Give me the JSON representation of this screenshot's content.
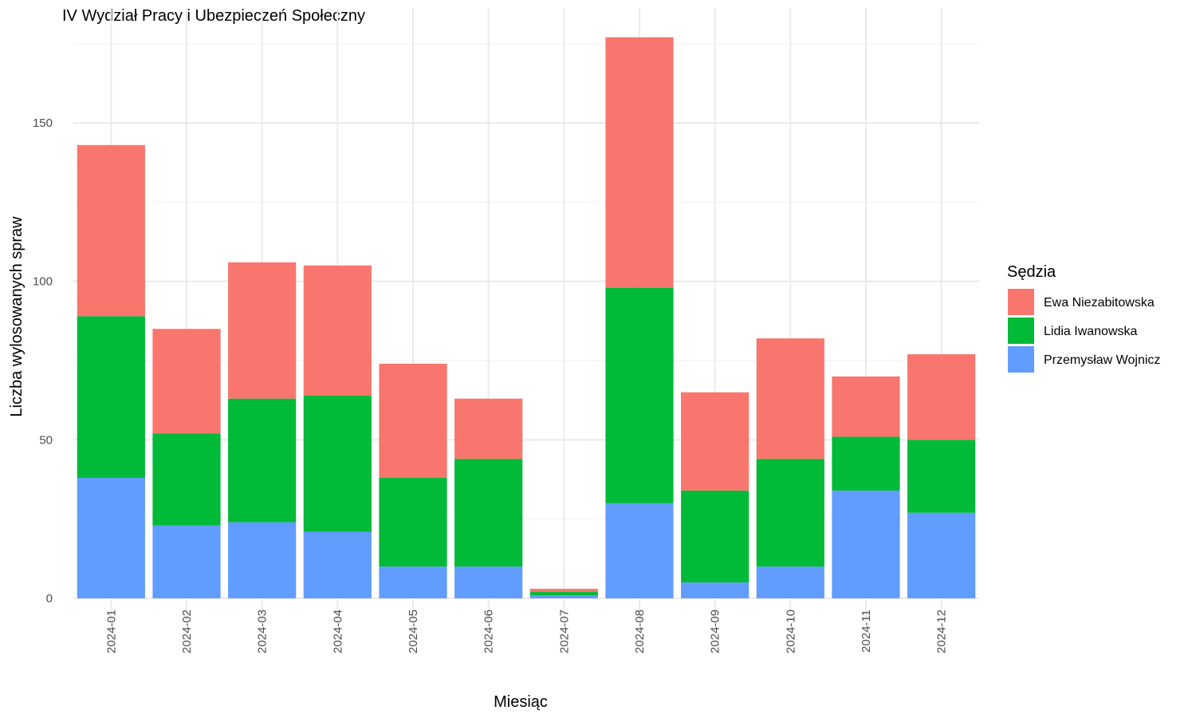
{
  "chart_data": {
    "type": "bar",
    "stacked": true,
    "title": "IV Wydział Pracy i Ubezpieczeń Społeczny",
    "xlabel": "Miesiąc",
    "ylabel": "Liczba wylosowanych spraw",
    "categories": [
      "2024-01",
      "2024-02",
      "2024-03",
      "2024-04",
      "2024-05",
      "2024-06",
      "2024-07",
      "2024-08",
      "2024-09",
      "2024-10",
      "2024-11",
      "2024-12"
    ],
    "y_ticks": [
      0,
      50,
      100,
      150
    ],
    "ylim": [
      0,
      182
    ],
    "grid": true,
    "legend": {
      "title": "Sędzia",
      "position": "right"
    },
    "series": [
      {
        "name": "Przemysław Wojnicz",
        "color": "#619CFF",
        "values": [
          38,
          23,
          24,
          21,
          10,
          10,
          1,
          30,
          5,
          10,
          34,
          27
        ]
      },
      {
        "name": "Lidia Iwanowska",
        "color": "#00BA38",
        "values": [
          51,
          29,
          39,
          43,
          28,
          34,
          1,
          68,
          29,
          34,
          17,
          23
        ]
      },
      {
        "name": "Ewa Niezabitowska",
        "color": "#F8766D",
        "values": [
          54,
          33,
          43,
          41,
          36,
          19,
          1,
          79,
          31,
          38,
          19,
          27
        ]
      }
    ]
  }
}
